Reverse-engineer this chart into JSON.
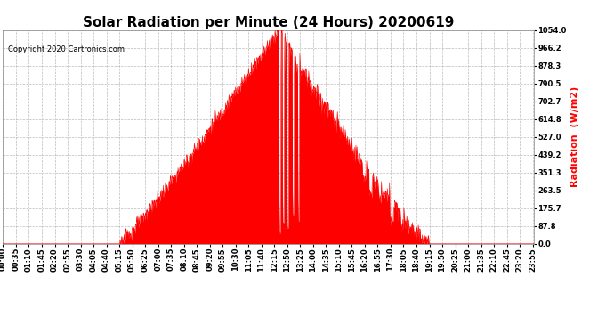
{
  "title": "Solar Radiation per Minute (24 Hours) 20200619",
  "copyright_text": "Copyright 2020 Cartronics.com",
  "ylabel": "Radiation  (W/m2)",
  "ylabel_color": "#FF0000",
  "fill_color": "#FF0000",
  "line_color": "#FF0000",
  "background_color": "#FFFFFF",
  "grid_color": "#AAAAAA",
  "ymax": 1054.0,
  "ytick_labels": [
    0.0,
    87.8,
    175.7,
    263.5,
    351.3,
    439.2,
    527.0,
    614.8,
    702.7,
    790.5,
    878.3,
    966.2,
    1054.0
  ],
  "x_tick_interval": 35,
  "title_fontsize": 11,
  "tick_fontsize": 6,
  "label_fontsize": 8
}
